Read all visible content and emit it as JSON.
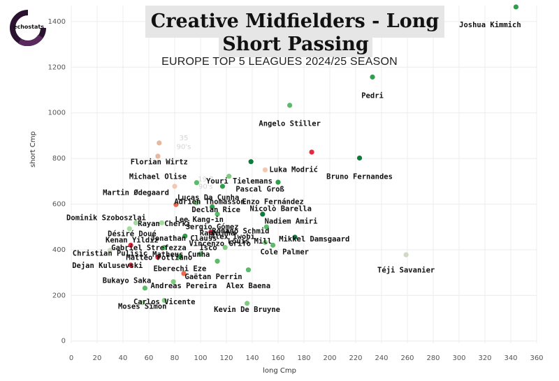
{
  "brand": {
    "logo_text": "echostats"
  },
  "chart_data": {
    "type": "scatter",
    "title_line1": "Creative Midfielders - Long v",
    "title_line2": "Short Passing",
    "subtitle": "EUROPE TOP 5 LEAGUES 2024/25 SEASON",
    "xlabel": "long Cmp",
    "ylabel": "short Cmp",
    "xlim": [
      0,
      360
    ],
    "ylim": [
      -10,
      1470
    ],
    "xticks": [
      0,
      20,
      40,
      60,
      80,
      100,
      120,
      140,
      160,
      180,
      200,
      220,
      240,
      260,
      280,
      300,
      320,
      340,
      360
    ],
    "yticks": [
      0,
      200,
      400,
      600,
      800,
      1000,
      1200,
      1400
    ],
    "grid": true,
    "faint_annotations": [
      {
        "text": "35",
        "x": 87,
        "y": 880
      },
      {
        "text": "90's",
        "x": 87,
        "y": 842
      },
      {
        "text": "19.7",
        "x": 104,
        "y": 700
      },
      {
        "text": "90's",
        "x": 104,
        "y": 668
      }
    ],
    "points": [
      {
        "label": "Joshua Kimmich",
        "x": 344,
        "y": 1464,
        "color": "#2e9e4a",
        "lx": 324,
        "ly": 1375
      },
      {
        "label": "Pedri",
        "x": 233,
        "y": 1157,
        "color": "#2e9e4a",
        "lx": 233,
        "ly": 1065
      },
      {
        "label": "Angelo Stiller",
        "x": 169,
        "y": 1033,
        "color": "#5bbb6a",
        "lx": 169,
        "ly": 942
      },
      {
        "label": "Luka Modrić",
        "x": 186,
        "y": 828,
        "color": "#e8283e",
        "lx": 172,
        "ly": 740
      },
      {
        "label": "Bruno Fernandes",
        "x": 223,
        "y": 802,
        "color": "#0f7a3a",
        "lx": 223,
        "ly": 710
      },
      {
        "label": "Florian Wirtz",
        "x": 68,
        "y": 868,
        "color": "#e7b7a0",
        "lx": 68,
        "ly": 775
      },
      {
        "label": "Michael Olise",
        "x": 67,
        "y": 810,
        "color": "#e7b7a0",
        "lx": 67,
        "ly": 710
      },
      {
        "label": "Martin Ødegaard",
        "x": 80,
        "y": 678,
        "color": "#f3c7b2",
        "lx": 50,
        "ly": 640
      },
      {
        "label": "Youri Tielemans",
        "x": 139,
        "y": 786,
        "color": "#0f7a3a",
        "lx": 130,
        "ly": 690
      },
      {
        "label": "Pascal Groß",
        "x": 150,
        "y": 750,
        "color": "#f3c7b2",
        "lx": 146,
        "ly": 655
      },
      {
        "label": "Lucas Da Cunha",
        "x": 97,
        "y": 694,
        "color": "#5bbb6a",
        "lx": 106,
        "ly": 618
      },
      {
        "label": "Adrien Thomasson",
        "x": 122,
        "y": 722,
        "color": "#7fcc80",
        "lx": 107,
        "ly": 600
      },
      {
        "label": "Enzo Fernández",
        "x": 117,
        "y": 678,
        "color": "#2e9e4a",
        "lx": 156,
        "ly": 600
      },
      {
        "label": "Nicolò Barella",
        "x": 160,
        "y": 696,
        "color": "#2e9e4a",
        "lx": 162,
        "ly": 570
      },
      {
        "label": "Declan Rice",
        "x": 81,
        "y": 598,
        "color": "#ee6a4a",
        "lx": 112,
        "ly": 565
      },
      {
        "label": "Dominik Szoboszlai",
        "x": 50,
        "y": 518,
        "color": "#a5d9a0",
        "lx": 27,
        "ly": 530
      },
      {
        "label": "Lee Kang-in",
        "x": 97,
        "y": 606,
        "color": "#7fcc80",
        "lx": 99,
        "ly": 522
      },
      {
        "label": "Nadiem Amiri",
        "x": 148,
        "y": 556,
        "color": "#0f7a3a",
        "lx": 170,
        "ly": 515
      },
      {
        "label": "Rayan Cherki",
        "x": 70,
        "y": 518,
        "color": "#a5d9a0",
        "lx": 72,
        "ly": 503
      },
      {
        "label": "Sergio Gómez",
        "x": 109,
        "y": 588,
        "color": "#2e9e4a",
        "lx": 109,
        "ly": 490
      },
      {
        "label": "Romano Schmid",
        "x": 151,
        "y": 500,
        "color": "#5bbb6a",
        "lx": 131,
        "ly": 472
      },
      {
        "label": "Désiré Doué",
        "x": 45,
        "y": 492,
        "color": "#a5d9a0",
        "lx": 47,
        "ly": 460
      },
      {
        "label": "Raphinha",
        "x": 108,
        "y": 478,
        "color": "#e8283e",
        "lx": 113,
        "ly": 462
      },
      {
        "label": "Alex Iwobi",
        "x": 113,
        "y": 556,
        "color": "#5bbb6a",
        "lx": 125,
        "ly": 447
      },
      {
        "label": "Kenan Yildiz",
        "x": 46,
        "y": 420,
        "color": "#e8283e",
        "lx": 47,
        "ly": 432
      },
      {
        "label": "Jonathan Clauss",
        "x": 88,
        "y": 460,
        "color": "#2e9e4a",
        "lx": 87,
        "ly": 440
      },
      {
        "label": "Mikkel Damsgaard",
        "x": 173,
        "y": 455,
        "color": "#0f7a3a",
        "lx": 188,
        "ly": 437
      },
      {
        "label": "Louis Mill",
        "x": 150,
        "y": 432,
        "color": "#7fcc80",
        "lx": 138,
        "ly": 427
      },
      {
        "label": "Vincenzo Grifo",
        "x": 119,
        "y": 410,
        "color": "#7fcc80",
        "lx": 115,
        "ly": 416
      },
      {
        "label": "Gabriel Strefezza",
        "x": 72,
        "y": 410,
        "color": "#5bbb6a",
        "lx": 60,
        "ly": 398
      },
      {
        "label": "Isco",
        "x": 100,
        "y": 382,
        "color": "#5bbb6a",
        "lx": 106,
        "ly": 398
      },
      {
        "label": "Cole Palmer",
        "x": 156,
        "y": 420,
        "color": "#5bbb6a",
        "lx": 165,
        "ly": 380
      },
      {
        "label": "Christian Pulisic",
        "x": 30,
        "y": 398,
        "color": "#cfd9c4",
        "lx": 30,
        "ly": 374
      },
      {
        "label": "Matheus Cunha",
        "x": 84,
        "y": 370,
        "color": "#2e9e4a",
        "lx": 85,
        "ly": 369
      },
      {
        "label": "Mattéo Pottiano",
        "x": 67,
        "y": 367,
        "color": "#e8283e",
        "lx": 68,
        "ly": 355
      },
      {
        "label": "Dejan Kulusevski",
        "x": 46,
        "y": 333,
        "color": "#e8283e",
        "lx": 28,
        "ly": 320
      },
      {
        "label": "Eberechi Eze",
        "x": 87,
        "y": 296,
        "color": "#ee6a4a",
        "lx": 84,
        "ly": 307
      },
      {
        "label": "Téji Savanier",
        "x": 259,
        "y": 378,
        "color": "#cfd9c4",
        "lx": 259,
        "ly": 300
      },
      {
        "label": "Gaëtan Perrin",
        "x": 113,
        "y": 350,
        "color": "#5bbb6a",
        "lx": 110,
        "ly": 272
      },
      {
        "label": "Bukayo Saka",
        "x": 57,
        "y": 232,
        "color": "#5bbb6a",
        "lx": 43,
        "ly": 254
      },
      {
        "label": "Andreas Pereira",
        "x": 79,
        "y": 260,
        "color": "#7fcc80",
        "lx": 87,
        "ly": 232
      },
      {
        "label": "Alex Baena",
        "x": 137,
        "y": 312,
        "color": "#5bbb6a",
        "lx": 137,
        "ly": 232
      },
      {
        "label": "Carlos Vicente",
        "x": 72,
        "y": 178,
        "color": "#7fcc80",
        "lx": 72,
        "ly": 162
      },
      {
        "label": "Moses Simon",
        "x": 55,
        "y": 168,
        "color": "#a5d9a0",
        "lx": 55,
        "ly": 142
      },
      {
        "label": "Kevin De Bruyne",
        "x": 136,
        "y": 165,
        "color": "#7fcc80",
        "lx": 136,
        "ly": 127
      }
    ]
  }
}
